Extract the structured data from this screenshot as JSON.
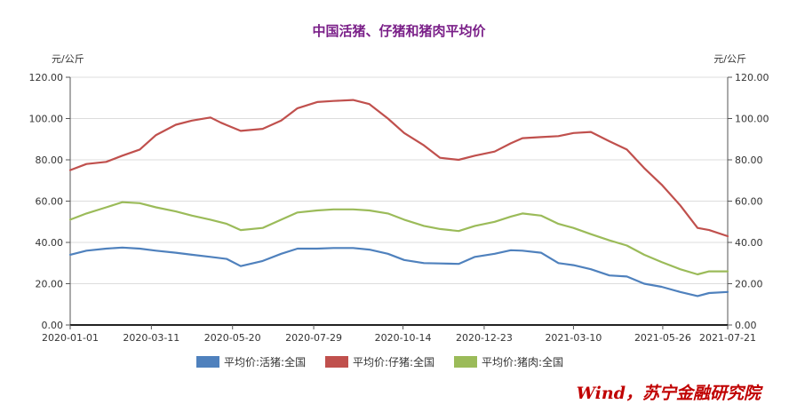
{
  "chart_data": {
    "type": "line",
    "title": "中国活猪、仔猪和猪肉平均价",
    "ylabel_left": "元/公斤",
    "ylabel_right": "元/公斤",
    "ylim": [
      0,
      120
    ],
    "yticks": [
      "0.00",
      "20.00",
      "40.00",
      "60.00",
      "80.00",
      "100.00",
      "120.00"
    ],
    "xlim": [
      "2020-01-01",
      "2021-07-21"
    ],
    "xticks": [
      "2020-01-01",
      "2020-03-11",
      "2020-05-20",
      "2020-07-29",
      "2020-10-14",
      "2020-12-23",
      "2021-03-10",
      "2021-05-26",
      "2021-07-21"
    ],
    "grid": true,
    "legend_position": "bottom",
    "series": [
      {
        "name": "平均价:活猪:全国",
        "color": "#4f81bd",
        "x": [
          "2020-01-01",
          "2020-01-15",
          "2020-02-01",
          "2020-02-15",
          "2020-03-01",
          "2020-03-15",
          "2020-04-01",
          "2020-04-15",
          "2020-05-01",
          "2020-05-15",
          "2020-05-27",
          "2020-06-15",
          "2020-07-01",
          "2020-07-15",
          "2020-08-01",
          "2020-08-15",
          "2020-09-01",
          "2020-09-15",
          "2020-10-01",
          "2020-10-15",
          "2020-11-01",
          "2020-11-15",
          "2020-12-01",
          "2020-12-15",
          "2021-01-01",
          "2021-01-15",
          "2021-01-25",
          "2021-02-10",
          "2021-02-25",
          "2021-03-10",
          "2021-03-25",
          "2021-04-10",
          "2021-04-25",
          "2021-05-10",
          "2021-05-25",
          "2021-06-10",
          "2021-06-25",
          "2021-07-05",
          "2021-07-21"
        ],
        "values": [
          34,
          36,
          37,
          37.5,
          37,
          36,
          35,
          34,
          33,
          32,
          28.5,
          31,
          34.5,
          37,
          37,
          37.3,
          37.3,
          36.5,
          34.5,
          31.5,
          30,
          29.8,
          29.6,
          33,
          34.5,
          36.2,
          36,
          35,
          30,
          29,
          27,
          24,
          23.5,
          20,
          18.5,
          16,
          14,
          15.5,
          16
        ]
      },
      {
        "name": "平均价:仔猪:全国",
        "color": "#c0504d",
        "x": [
          "2020-01-01",
          "2020-01-15",
          "2020-02-01",
          "2020-02-15",
          "2020-03-01",
          "2020-03-15",
          "2020-04-01",
          "2020-04-15",
          "2020-05-01",
          "2020-05-10",
          "2020-05-27",
          "2020-06-15",
          "2020-07-01",
          "2020-07-15",
          "2020-08-01",
          "2020-08-15",
          "2020-09-01",
          "2020-09-15",
          "2020-10-01",
          "2020-10-15",
          "2020-11-01",
          "2020-11-15",
          "2020-12-01",
          "2020-12-15",
          "2021-01-01",
          "2021-01-15",
          "2021-01-25",
          "2021-02-10",
          "2021-02-25",
          "2021-03-10",
          "2021-03-25",
          "2021-04-10",
          "2021-04-25",
          "2021-05-10",
          "2021-05-25",
          "2021-06-10",
          "2021-06-25",
          "2021-07-05",
          "2021-07-21"
        ],
        "values": [
          75,
          78,
          79,
          82,
          85,
          92,
          97,
          99,
          100.5,
          98,
          94,
          95,
          99,
          105,
          108,
          108.5,
          109,
          107,
          100,
          93,
          87,
          81,
          80,
          82,
          84,
          88,
          90.5,
          91,
          91.5,
          93,
          93.5,
          89,
          85,
          76,
          68,
          58,
          47,
          46,
          43
        ]
      },
      {
        "name": "平均价:猪肉:全国",
        "color": "#9bbb59",
        "x": [
          "2020-01-01",
          "2020-01-15",
          "2020-02-01",
          "2020-02-15",
          "2020-03-01",
          "2020-03-15",
          "2020-04-01",
          "2020-04-15",
          "2020-05-01",
          "2020-05-15",
          "2020-05-27",
          "2020-06-15",
          "2020-07-01",
          "2020-07-15",
          "2020-08-01",
          "2020-08-15",
          "2020-09-01",
          "2020-09-15",
          "2020-10-01",
          "2020-10-15",
          "2020-11-01",
          "2020-11-15",
          "2020-12-01",
          "2020-12-15",
          "2021-01-01",
          "2021-01-15",
          "2021-01-25",
          "2021-02-10",
          "2021-02-25",
          "2021-03-10",
          "2021-03-25",
          "2021-04-10",
          "2021-04-25",
          "2021-05-10",
          "2021-05-25",
          "2021-06-10",
          "2021-06-25",
          "2021-07-05",
          "2021-07-21"
        ],
        "values": [
          51,
          54,
          57,
          59.5,
          59,
          57,
          55,
          53,
          51,
          49,
          46,
          47,
          51,
          54.5,
          55.5,
          56,
          56,
          55.5,
          54,
          51,
          48,
          46.5,
          45.5,
          48,
          50,
          52.5,
          54,
          53,
          49,
          47,
          44,
          41,
          38.5,
          34,
          30.5,
          27,
          24.5,
          26,
          26
        ]
      }
    ]
  },
  "watermark": "Wind，苏宁金融研究院"
}
